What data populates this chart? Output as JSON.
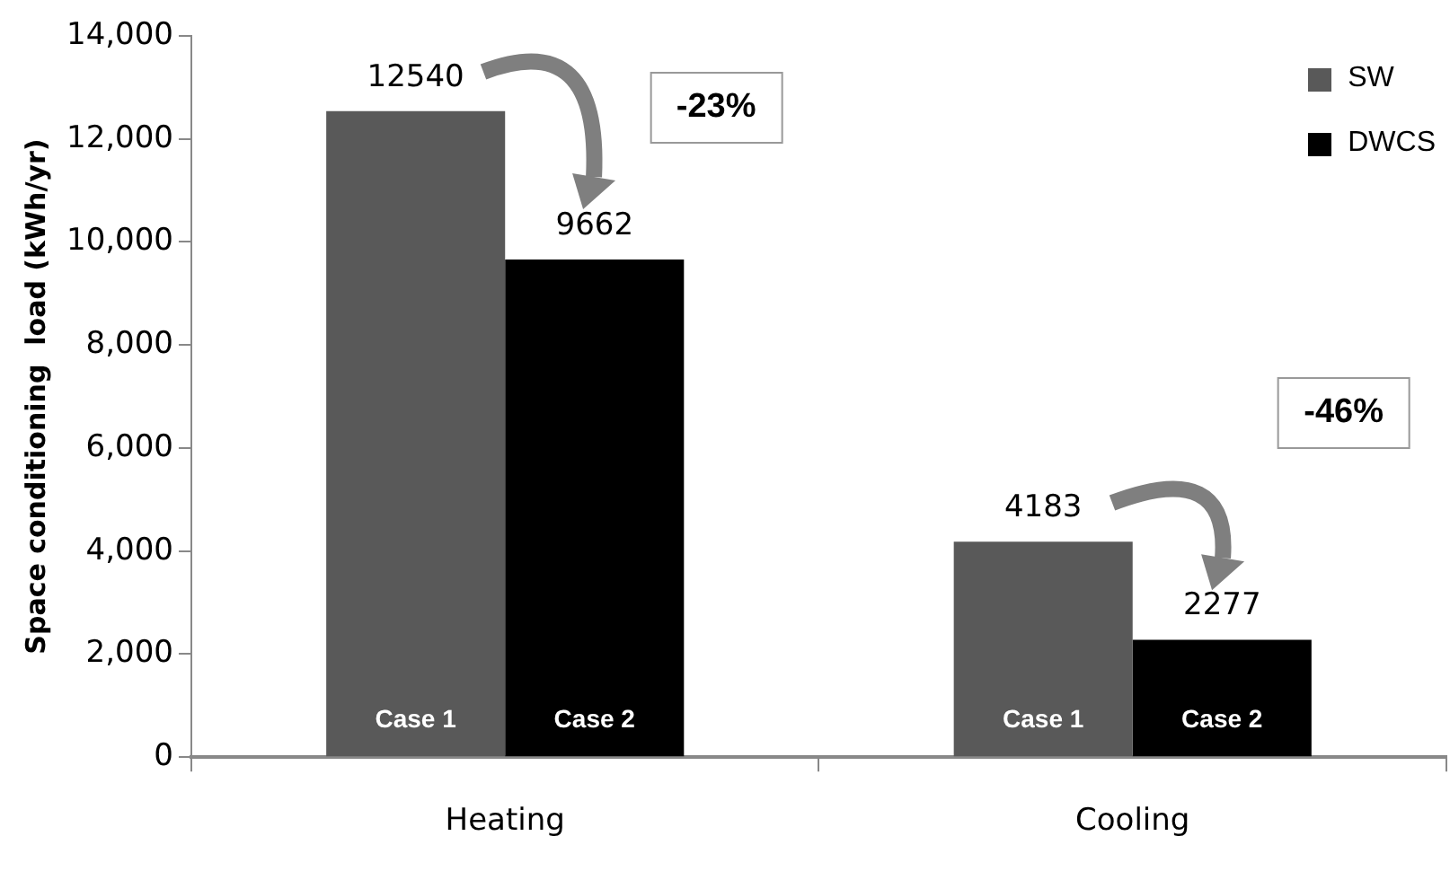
{
  "chart_data": {
    "type": "bar",
    "categories": [
      "Heating",
      "Cooling"
    ],
    "series": [
      {
        "name": "SW",
        "color": "#595959",
        "values": [
          12540,
          4183
        ]
      },
      {
        "name": "DWCS",
        "color": "#000000",
        "values": [
          9662,
          2277
        ]
      }
    ],
    "ylabel": "Space conditioning  load (kWh/yr)",
    "ylim": [
      0,
      14000
    ],
    "yticks": [
      0,
      {
        "value": 2000,
        "label": "2,000"
      },
      {
        "value": 4000,
        "label": "4,000"
      },
      {
        "value": 6000,
        "label": "6,000"
      },
      {
        "value": 8000,
        "label": "8,000"
      },
      {
        "value": 10000,
        "label": "10,000"
      },
      {
        "value": 12000,
        "label": "12,000"
      },
      {
        "value": 14000,
        "label": "14,000"
      }
    ],
    "data_labels": true,
    "grid": false,
    "legend": "top right",
    "annotations": [
      "-23%",
      "-46%",
      "Case 1",
      "Case  2",
      "Case 1",
      "Case  2"
    ]
  }
}
